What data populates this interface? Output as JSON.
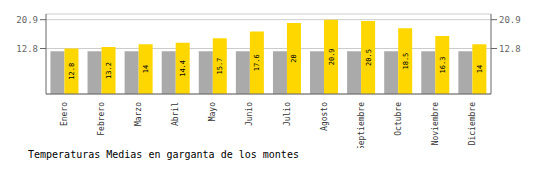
{
  "chart_data": {
    "type": "bar",
    "title": "Temperaturas Medias en garganta de los montes",
    "categories": [
      "Enero",
      "Febrero",
      "Marzo",
      "Abril",
      "Mayo",
      "Junio",
      "Julio",
      "Agosto",
      "Septiembre",
      "Octubre",
      "Noviembre",
      "Diciembre"
    ],
    "series": [
      {
        "color": "#AAAAAA",
        "values": [
          12.0,
          12.0,
          12.0,
          12.0,
          12.0,
          12.0,
          12.0,
          12.0,
          12.0,
          12.0,
          12.0,
          12.0
        ]
      },
      {
        "color": "#FFD700",
        "values": [
          12.8,
          13.2,
          14.0,
          14.4,
          15.7,
          17.6,
          20.0,
          20.9,
          20.5,
          18.5,
          16.3,
          14.0
        ],
        "data_labels": true
      }
    ],
    "ylim": [
      0,
      22.5
    ],
    "yticks": [
      12.8,
      20.9
    ],
    "y2lim": [
      0,
      22.5
    ],
    "y2ticks": [
      12.8,
      20.9
    ],
    "grid": true
  }
}
